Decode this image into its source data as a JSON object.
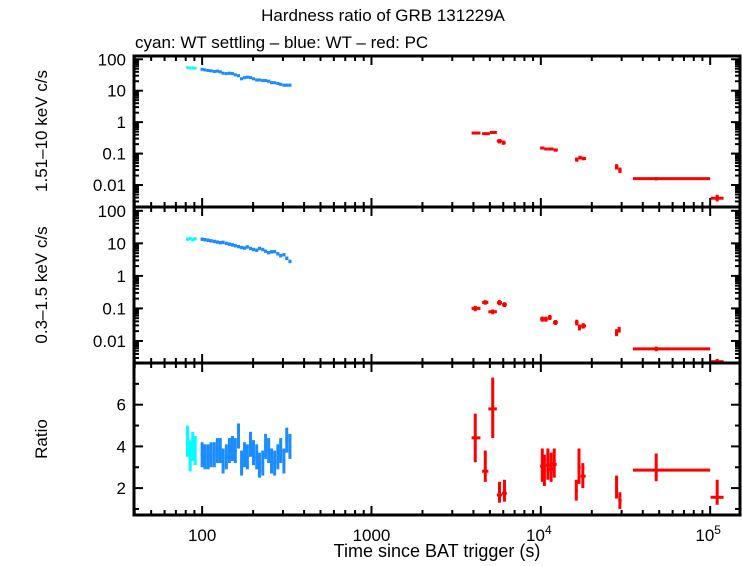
{
  "chart_data": {
    "type": "scatter",
    "title": "Hardness ratio of GRB 131229A",
    "subtitle": "cyan: WT settling – blue: WT – red: PC",
    "xlabel": "Time since BAT trigger (s)",
    "xscale": "log",
    "xlim": [
      39.6,
      150000
    ],
    "xticks": [
      {
        "v": 100,
        "label": "100"
      },
      {
        "v": 1000,
        "label": "1000"
      },
      {
        "v": 10000,
        "label": "10",
        "sup": "4"
      },
      {
        "v": 100000,
        "label": "10",
        "sup": "5"
      }
    ],
    "grid": false,
    "colors": {
      "WT settling": "#00ffff",
      "WT": "#1a8cff",
      "PC": "#ff0000"
    },
    "point_format": [
      "t",
      "t_lo",
      "t_hi",
      "y",
      "y_lo",
      "y_hi"
    ],
    "panels": [
      {
        "ylabel": "1.51–10 keV c/s",
        "yscale": "log",
        "ylim": [
          0.002,
          127
        ],
        "yticks": [
          {
            "v": 100,
            "label": "100"
          },
          {
            "v": 10,
            "label": "10"
          },
          {
            "v": 1,
            "label": "1"
          },
          {
            "v": 0.1,
            "label": "0.1"
          },
          {
            "v": 0.01,
            "label": "0.01"
          }
        ],
        "series": [
          {
            "name": "WT settling",
            "points": [
              [
                82,
                81,
                83,
                55,
                51,
                59
              ],
              [
                85,
                84,
                86,
                52,
                48,
                56
              ],
              [
                88,
                87,
                89,
                53,
                49,
                57
              ],
              [
                91,
                90,
                92,
                52,
                48,
                56
              ]
            ]
          },
          {
            "name": "WT",
            "values_t": [
              100,
              104,
              108.5,
              113,
              118,
              123,
              128,
              133,
              139,
              145,
              151,
              157,
              164,
              171,
              178,
              185,
              193,
              201,
              210,
              218,
              228,
              237,
              247,
              257,
              268,
              280,
              291,
              304,
              316,
              330
            ],
            "values_y": [
              48,
              46,
              44,
              43,
              41,
              42,
              40,
              36,
              35,
              36,
              35,
              32,
              30,
              24,
              26,
              27,
              26,
              24,
              22,
              22,
              21,
              21,
              20,
              18,
              18,
              17,
              16,
              15,
              15,
              15
            ],
            "rel_err": 0.1
          },
          {
            "name": "PC",
            "points": [
              [
                4100,
                3900,
                4400,
                0.45,
                0.41,
                0.5
              ],
              [
                4800,
                4500,
                5000,
                0.43,
                0.39,
                0.47
              ],
              [
                5200,
                5000,
                5500,
                0.47,
                0.43,
                0.51
              ],
              [
                5700,
                5500,
                5900,
                0.25,
                0.21,
                0.29
              ],
              [
                6000,
                5900,
                6200,
                0.22,
                0.19,
                0.26
              ],
              [
                10200,
                9900,
                10500,
                0.15,
                0.135,
                0.165
              ],
              [
                10700,
                10500,
                11000,
                0.14,
                0.125,
                0.155
              ],
              [
                11500,
                11000,
                11900,
                0.14,
                0.125,
                0.155
              ],
              [
                12200,
                11900,
                12600,
                0.13,
                0.115,
                0.145
              ],
              [
                16300,
                15900,
                16700,
                0.065,
                0.055,
                0.075
              ],
              [
                17000,
                16700,
                17400,
                0.075,
                0.065,
                0.085
              ],
              [
                17800,
                17400,
                18500,
                0.07,
                0.061,
                0.079
              ],
              [
                28000,
                27500,
                28700,
                0.038,
                0.031,
                0.046
              ],
              [
                29300,
                28700,
                30000,
                0.03,
                0.024,
                0.036
              ],
              [
                48000,
                35000,
                100000,
                0.016,
                0.014,
                0.018
              ],
              [
                110000,
                100500,
                120000,
                0.0038,
                0.003,
                0.0049
              ]
            ]
          }
        ]
      },
      {
        "ylabel": "0.3–1.5 keV c/s",
        "yscale": "log",
        "ylim": [
          0.0021,
          131
        ],
        "yticks": [
          {
            "v": 100,
            "label": "100"
          },
          {
            "v": 10,
            "label": "10"
          },
          {
            "v": 1,
            "label": "1"
          },
          {
            "v": 0.1,
            "label": "0.1"
          },
          {
            "v": 0.01,
            "label": "0.01"
          }
        ],
        "series": [
          {
            "name": "WT settling",
            "points": [
              [
                82,
                81,
                83,
                13.5,
                12,
                15
              ],
              [
                85,
                84,
                86,
                14,
                12.5,
                15.5
              ],
              [
                88,
                87,
                89,
                13,
                11.5,
                14.5
              ],
              [
                91,
                90,
                92,
                13.8,
                12.3,
                15.3
              ]
            ]
          },
          {
            "name": "WT",
            "values_t": [
              100,
              104,
              108.5,
              113,
              118,
              123,
              128,
              133,
              139,
              145,
              151,
              157,
              164,
              171,
              178,
              185,
              193,
              201,
              210,
              218,
              228,
              237,
              247,
              257,
              268,
              280,
              291,
              304,
              316,
              330
            ],
            "values_y": [
              13.5,
              13,
              12.5,
              12,
              11.5,
              11,
              10.5,
              10.8,
              10,
              9.5,
              9,
              8.5,
              8,
              7.5,
              7.2,
              7.8,
              7,
              6.5,
              6.2,
              7,
              6.5,
              5.8,
              5.2,
              5.5,
              5.6,
              4.8,
              4.2,
              4.5,
              3.5,
              2.8
            ],
            "rel_err": 0.12
          },
          {
            "name": "PC",
            "points": [
              [
                4100,
                3900,
                4400,
                0.1,
                0.082,
                0.12
              ],
              [
                4700,
                4500,
                4900,
                0.153,
                0.13,
                0.18
              ],
              [
                5200,
                4900,
                5500,
                0.079,
                0.066,
                0.093
              ],
              [
                5700,
                5500,
                5900,
                0.15,
                0.125,
                0.18
              ],
              [
                6100,
                5900,
                6300,
                0.13,
                0.11,
                0.155
              ],
              [
                10200,
                9900,
                10500,
                0.047,
                0.039,
                0.056
              ],
              [
                10700,
                10400,
                11000,
                0.047,
                0.039,
                0.056
              ],
              [
                11300,
                11000,
                11600,
                0.053,
                0.044,
                0.063
              ],
              [
                12200,
                11800,
                12600,
                0.037,
                0.031,
                0.044
              ],
              [
                16300,
                15900,
                16700,
                0.037,
                0.03,
                0.045
              ],
              [
                16900,
                16600,
                17300,
                0.026,
                0.021,
                0.032
              ],
              [
                17800,
                17300,
                18500,
                0.029,
                0.024,
                0.035
              ],
              [
                28000,
                27500,
                28600,
                0.018,
                0.014,
                0.023
              ],
              [
                29000,
                28600,
                29600,
                0.022,
                0.018,
                0.027
              ],
              [
                48000,
                35000,
                100000,
                0.0057,
                0.0048,
                0.0067
              ],
              [
                110000,
                100500,
                120000,
                0.0023,
                0.0021,
                0.0028
              ]
            ]
          }
        ]
      },
      {
        "ylabel": "Ratio",
        "yscale": "linear",
        "ylim": [
          0.71,
          8.0
        ],
        "yticks": [
          {
            "v": 2,
            "label": "2"
          },
          {
            "v": 4,
            "label": "4"
          },
          {
            "v": 6,
            "label": "6"
          }
        ],
        "minor_step": 1,
        "series": [
          {
            "name": "WT settling",
            "points": [
              [
                82,
                81,
                83,
                4.2,
                3.5,
                5.0
              ],
              [
                85,
                84,
                86,
                3.5,
                2.8,
                4.3
              ],
              [
                88,
                87,
                89,
                4.0,
                3.3,
                4.7
              ],
              [
                91,
                90,
                92,
                3.8,
                3.1,
                4.5
              ]
            ]
          },
          {
            "name": "WT",
            "values_t": [
              100,
              104,
              108.5,
              113,
              118,
              123,
              128,
              133,
              139,
              145,
              151,
              157,
              164,
              171,
              178,
              185,
              193,
              201,
              210,
              218,
              228,
              237,
              247,
              257,
              268,
              280,
              291,
              304,
              316,
              330
            ],
            "values_y": [
              3.6,
              3.5,
              3.5,
              3.6,
              3.6,
              3.8,
              3.8,
              3.3,
              3.5,
              3.8,
              3.9,
              3.8,
              4.5,
              3.2,
              3.6,
              3.5,
              4.1,
              3.7,
              3.5,
              3.1,
              3.2,
              4.0,
              3.8,
              3.3,
              3.2,
              3.5,
              3.8,
              3.3,
              4.3,
              4.0
            ],
            "abs_err": 0.6
          },
          {
            "name": "PC",
            "points": [
              [
                4100,
                3900,
                4400,
                4.41,
                3.24,
                5.57
              ],
              [
                4700,
                4500,
                4900,
                2.81,
                2.3,
                3.8
              ],
              [
                5200,
                4900,
                5500,
                5.8,
                4.4,
                7.3
              ],
              [
                5700,
                5500,
                5900,
                1.67,
                1.3,
                2.3
              ],
              [
                6100,
                5900,
                6300,
                1.75,
                1.35,
                2.4
              ],
              [
                10200,
                9900,
                10500,
                3.05,
                2.3,
                3.9
              ],
              [
                10500,
                10300,
                10700,
                2.6,
                2.1,
                3.6
              ],
              [
                11000,
                10700,
                11300,
                3.1,
                2.4,
                3.9
              ],
              [
                11500,
                11200,
                11800,
                2.9,
                2.3,
                3.7
              ],
              [
                12000,
                11700,
                12400,
                3.14,
                2.5,
                3.9
              ],
              [
                16200,
                15900,
                16500,
                1.87,
                1.4,
                2.4
              ],
              [
                16800,
                16500,
                17200,
                2.99,
                2.2,
                3.9
              ],
              [
                17700,
                17200,
                18400,
                2.57,
                2.0,
                3.2
              ],
              [
                28000,
                27500,
                28600,
                2.0,
                1.5,
                2.6
              ],
              [
                29300,
                28700,
                30000,
                1.4,
                1.0,
                1.8
              ],
              [
                48000,
                35000,
                100000,
                2.86,
                2.33,
                3.66
              ],
              [
                110000,
                100500,
                120000,
                1.56,
                1.2,
                2.4
              ]
            ]
          }
        ]
      }
    ]
  }
}
